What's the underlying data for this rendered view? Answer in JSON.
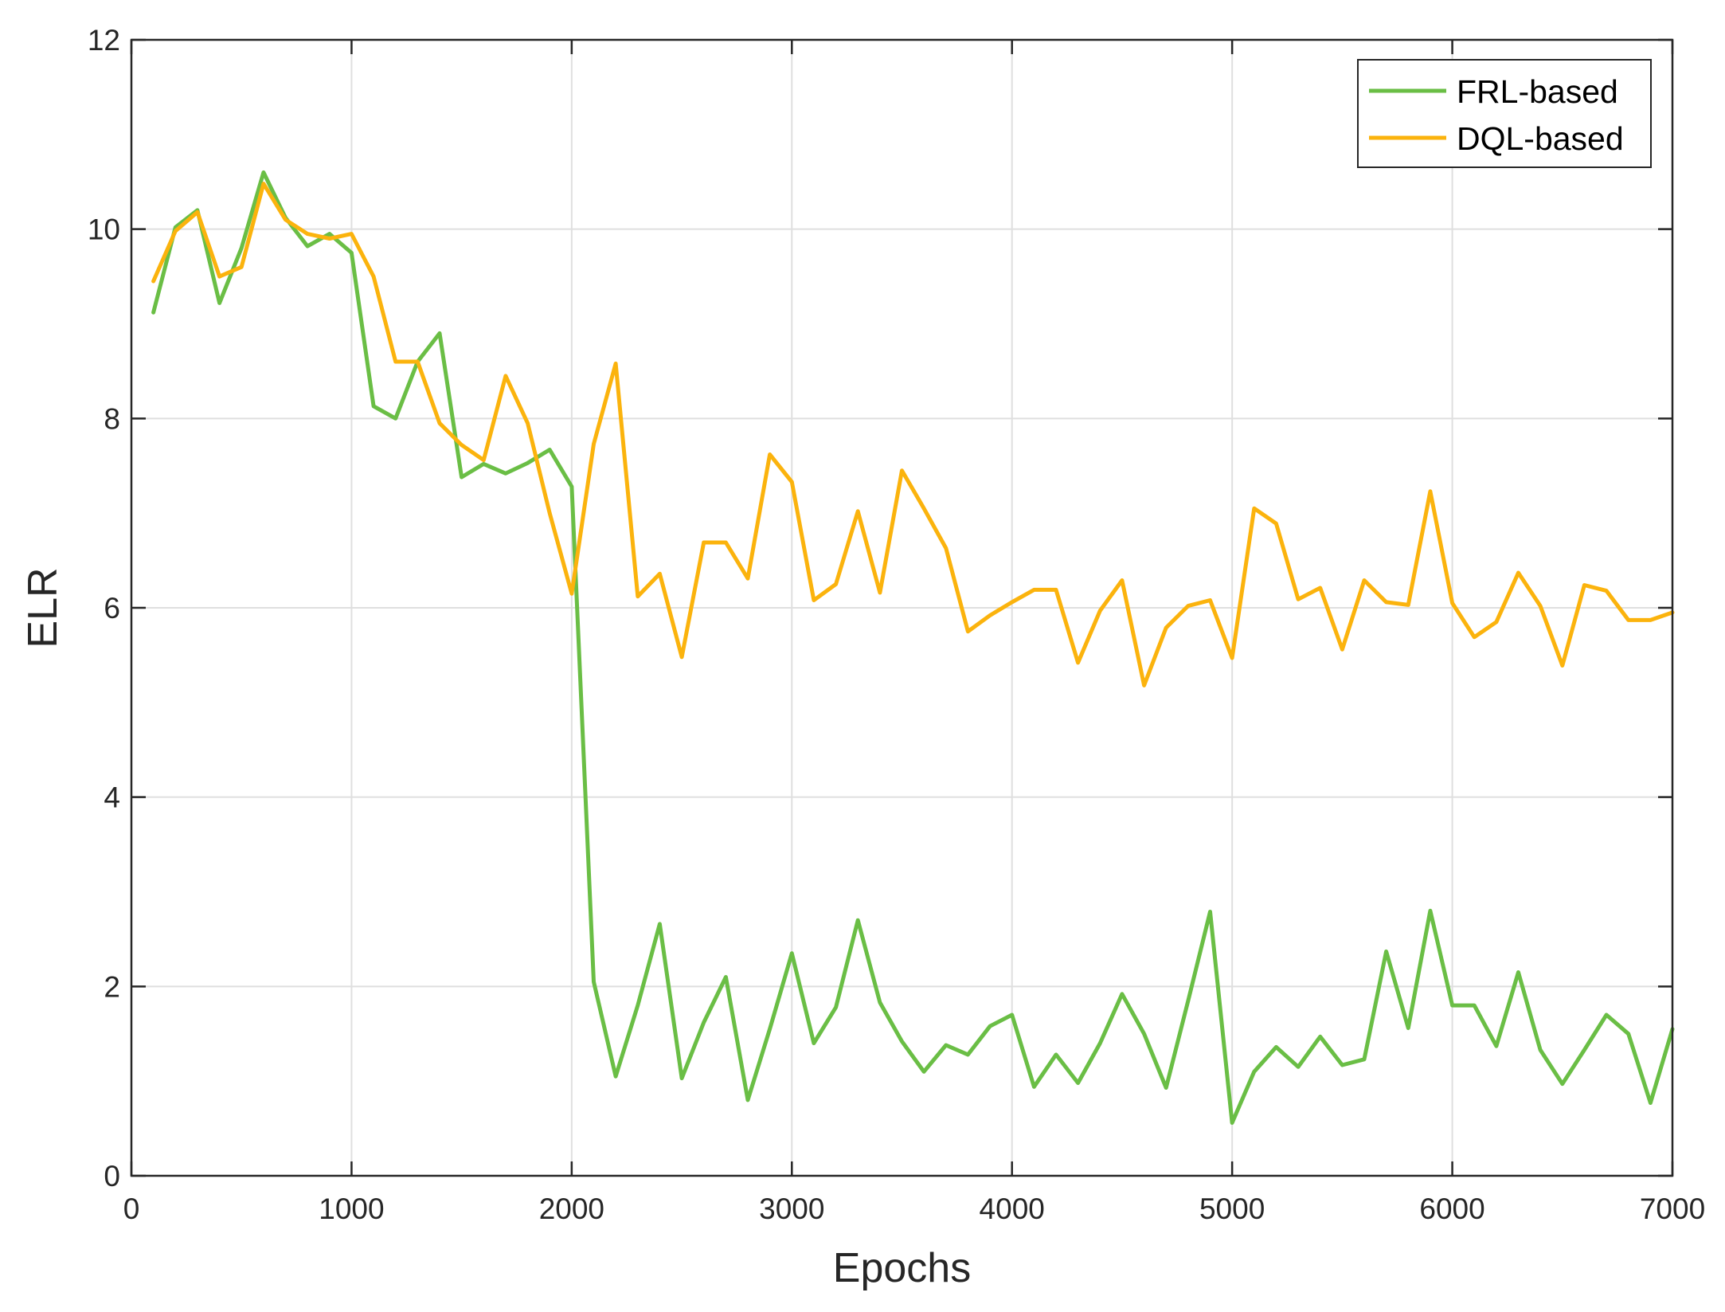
{
  "chart_data": {
    "type": "line",
    "xlabel": "Epochs",
    "ylabel": "ELR",
    "xlim": [
      0,
      7000
    ],
    "ylim": [
      0,
      12
    ],
    "xticks": [
      0,
      1000,
      2000,
      3000,
      4000,
      5000,
      6000,
      7000
    ],
    "yticks": [
      0,
      2,
      4,
      6,
      8,
      10,
      12
    ],
    "grid": true,
    "legend_position": "top-right",
    "x": [
      100,
      200,
      300,
      400,
      500,
      600,
      700,
      800,
      900,
      1000,
      1100,
      1200,
      1300,
      1400,
      1500,
      1600,
      1700,
      1800,
      1900,
      2000,
      2100,
      2200,
      2300,
      2400,
      2500,
      2600,
      2700,
      2800,
      2900,
      3000,
      3100,
      3200,
      3300,
      3400,
      3500,
      3600,
      3700,
      3800,
      3900,
      4000,
      4100,
      4200,
      4300,
      4400,
      4500,
      4600,
      4700,
      4800,
      4900,
      5000,
      5100,
      5200,
      5300,
      5400,
      5500,
      5600,
      5700,
      5800,
      5900,
      6000,
      6100,
      6200,
      6300,
      6400,
      6500,
      6600,
      6700,
      6800,
      6900,
      7000
    ],
    "series": [
      {
        "name": "FRL-based",
        "color": "#6abe45",
        "values": [
          9.12,
          10.02,
          10.2,
          9.22,
          9.8,
          10.6,
          10.12,
          9.82,
          9.95,
          9.75,
          8.13,
          8.0,
          8.6,
          8.9,
          7.38,
          7.52,
          7.42,
          7.53,
          7.67,
          7.28,
          2.05,
          1.05,
          1.8,
          2.66,
          1.03,
          1.62,
          2.1,
          0.8,
          1.55,
          2.35,
          1.4,
          1.78,
          2.7,
          1.83,
          1.42,
          1.1,
          1.38,
          1.28,
          1.58,
          1.7,
          0.94,
          1.28,
          0.98,
          1.4,
          1.92,
          1.5,
          0.93,
          1.85,
          2.79,
          0.56,
          1.1,
          1.36,
          1.15,
          1.47,
          1.17,
          1.23,
          2.37,
          1.56,
          2.8,
          1.8,
          1.8,
          1.37,
          2.15,
          1.33,
          0.97,
          1.33,
          1.7,
          1.5,
          0.77,
          1.55
        ]
      },
      {
        "name": "DQL-based",
        "color": "#fbb30d",
        "values": [
          9.45,
          9.98,
          10.18,
          9.5,
          9.6,
          10.48,
          10.1,
          9.95,
          9.9,
          9.95,
          9.5,
          8.6,
          8.6,
          7.95,
          7.72,
          7.56,
          8.45,
          7.95,
          7.0,
          6.15,
          7.73,
          8.58,
          6.12,
          6.36,
          5.48,
          6.69,
          6.69,
          6.31,
          7.62,
          7.33,
          6.08,
          6.25,
          7.02,
          6.16,
          7.45,
          7.05,
          6.63,
          5.75,
          5.92,
          6.06,
          6.19,
          6.19,
          5.42,
          5.97,
          6.29,
          5.18,
          5.79,
          6.02,
          6.08,
          5.47,
          7.05,
          6.89,
          6.09,
          6.21,
          5.56,
          6.29,
          6.06,
          6.03,
          7.23,
          6.05,
          5.69,
          5.85,
          6.37,
          6.02,
          5.39,
          6.24,
          6.18,
          5.87,
          5.87,
          5.95
        ]
      }
    ]
  }
}
